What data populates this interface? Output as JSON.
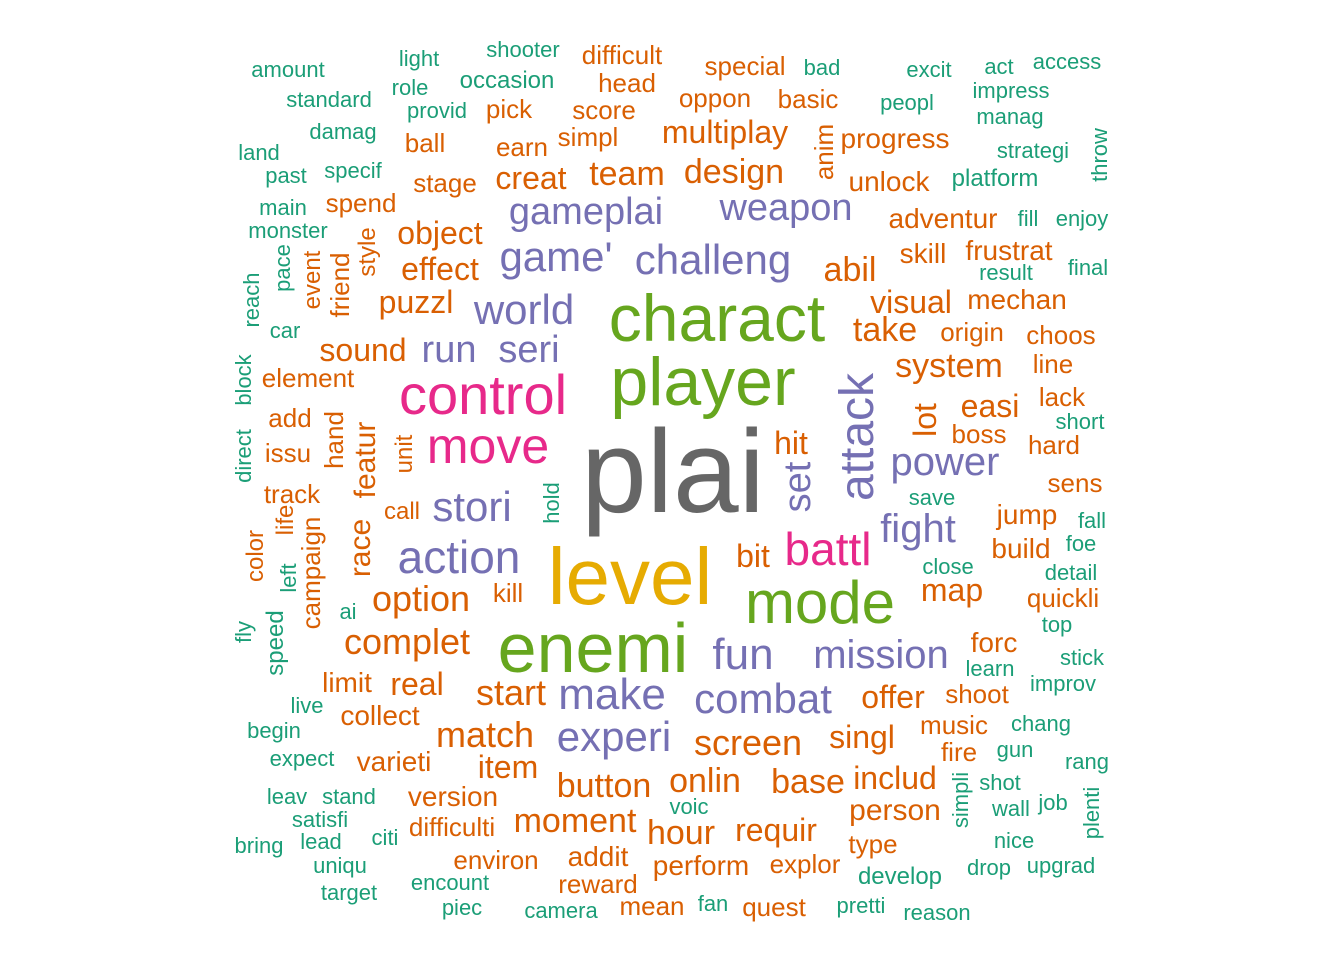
{
  "palette": {
    "green": "#1B9E77",
    "orange": "#D95F02",
    "purple": "#7570B3",
    "pink": "#E7298A",
    "lime": "#66A61E",
    "gold": "#E6AB02",
    "gray": "#666666"
  },
  "words": [
    {
      "text": "plai",
      "color": "gray"
    },
    {
      "text": "level",
      "color": "gold"
    },
    {
      "text": "enemi",
      "color": "lime"
    },
    {
      "text": "player",
      "color": "lime"
    },
    {
      "text": "charact",
      "color": "lime"
    },
    {
      "text": "mode",
      "color": "lime"
    },
    {
      "text": "control",
      "color": "pink"
    },
    {
      "text": "battl",
      "color": "pink"
    },
    {
      "text": "move",
      "color": "pink"
    },
    {
      "text": "attack",
      "color": "purple"
    },
    {
      "text": "action",
      "color": "purple"
    },
    {
      "text": "make",
      "color": "purple"
    },
    {
      "text": "fun",
      "color": "purple"
    },
    {
      "text": "experi",
      "color": "purple"
    },
    {
      "text": "combat",
      "color": "purple"
    },
    {
      "text": "stori",
      "color": "purple"
    },
    {
      "text": "world",
      "color": "purple"
    },
    {
      "text": "challeng",
      "color": "purple"
    },
    {
      "text": "game'",
      "color": "purple"
    },
    {
      "text": "mission",
      "color": "purple"
    },
    {
      "text": "power",
      "color": "purple"
    },
    {
      "text": "fight",
      "color": "purple"
    },
    {
      "text": "gameplai",
      "color": "purple"
    },
    {
      "text": "weapon",
      "color": "purple"
    },
    {
      "text": "seri",
      "color": "purple"
    },
    {
      "text": "run",
      "color": "purple"
    },
    {
      "text": "set",
      "color": "purple"
    },
    {
      "text": "design",
      "color": "orange"
    },
    {
      "text": "team",
      "color": "orange"
    },
    {
      "text": "multiplay",
      "color": "orange"
    },
    {
      "text": "creat",
      "color": "orange"
    },
    {
      "text": "object",
      "color": "orange"
    },
    {
      "text": "effect",
      "color": "orange"
    },
    {
      "text": "puzzl",
      "color": "orange"
    },
    {
      "text": "sound",
      "color": "orange"
    },
    {
      "text": "featur",
      "color": "orange"
    },
    {
      "text": "race",
      "color": "orange"
    },
    {
      "text": "hand",
      "color": "orange"
    },
    {
      "text": "option",
      "color": "orange"
    },
    {
      "text": "complet",
      "color": "orange"
    },
    {
      "text": "match",
      "color": "orange"
    },
    {
      "text": "start",
      "color": "orange"
    },
    {
      "text": "screen",
      "color": "orange"
    },
    {
      "text": "button",
      "color": "orange"
    },
    {
      "text": "moment",
      "color": "orange"
    },
    {
      "text": "onlin",
      "color": "orange"
    },
    {
      "text": "hour",
      "color": "orange"
    },
    {
      "text": "base",
      "color": "orange"
    },
    {
      "text": "requir",
      "color": "orange"
    },
    {
      "text": "singl",
      "color": "orange"
    },
    {
      "text": "offer",
      "color": "orange"
    },
    {
      "text": "item",
      "color": "orange"
    },
    {
      "text": "real",
      "color": "orange"
    },
    {
      "text": "system",
      "color": "orange"
    },
    {
      "text": "abil",
      "color": "orange"
    },
    {
      "text": "take",
      "color": "orange"
    },
    {
      "text": "visual",
      "color": "orange"
    },
    {
      "text": "lot",
      "color": "orange"
    },
    {
      "text": "easi",
      "color": "orange"
    },
    {
      "text": "hit",
      "color": "orange"
    },
    {
      "text": "bit",
      "color": "orange"
    },
    {
      "text": "map",
      "color": "orange"
    },
    {
      "text": "anim",
      "color": "orange"
    },
    {
      "text": "includ",
      "color": "orange"
    },
    {
      "text": "person",
      "color": "orange"
    },
    {
      "text": "version",
      "color": "orange"
    },
    {
      "text": "varieti",
      "color": "orange"
    },
    {
      "text": "collect",
      "color": "orange"
    },
    {
      "text": "limit",
      "color": "orange"
    },
    {
      "text": "addit",
      "color": "orange"
    },
    {
      "text": "perform",
      "color": "orange"
    },
    {
      "text": "explor",
      "color": "orange"
    },
    {
      "text": "difficulti",
      "color": "orange"
    },
    {
      "text": "environ",
      "color": "orange"
    },
    {
      "text": "reward",
      "color": "orange"
    },
    {
      "text": "mean",
      "color": "orange"
    },
    {
      "text": "quest",
      "color": "orange"
    },
    {
      "text": "kill",
      "color": "orange"
    },
    {
      "text": "music",
      "color": "orange"
    },
    {
      "text": "fire",
      "color": "orange"
    },
    {
      "text": "shoot",
      "color": "orange"
    },
    {
      "text": "forc",
      "color": "orange"
    },
    {
      "text": "build",
      "color": "orange"
    },
    {
      "text": "jump",
      "color": "orange"
    },
    {
      "text": "boss",
      "color": "orange"
    },
    {
      "text": "sens",
      "color": "orange"
    },
    {
      "text": "quickli",
      "color": "orange"
    },
    {
      "text": "mechan",
      "color": "orange"
    },
    {
      "text": "origin",
      "color": "orange"
    },
    {
      "text": "choos",
      "color": "orange"
    },
    {
      "text": "line",
      "color": "orange"
    },
    {
      "text": "lack",
      "color": "orange"
    },
    {
      "text": "hard",
      "color": "orange"
    },
    {
      "text": "skill",
      "color": "orange"
    },
    {
      "text": "frustrat",
      "color": "orange"
    },
    {
      "text": "adventur",
      "color": "orange"
    },
    {
      "text": "unlock",
      "color": "orange"
    },
    {
      "text": "progress",
      "color": "orange"
    },
    {
      "text": "basic",
      "color": "orange"
    },
    {
      "text": "oppon",
      "color": "orange"
    },
    {
      "text": "special",
      "color": "orange"
    },
    {
      "text": "difficult",
      "color": "orange"
    },
    {
      "text": "head",
      "color": "orange"
    },
    {
      "text": "score",
      "color": "orange"
    },
    {
      "text": "pick",
      "color": "orange"
    },
    {
      "text": "earn",
      "color": "orange"
    },
    {
      "text": "simpl",
      "color": "orange"
    },
    {
      "text": "ball",
      "color": "orange"
    },
    {
      "text": "stage",
      "color": "orange"
    },
    {
      "text": "spend",
      "color": "orange"
    },
    {
      "text": "style",
      "color": "orange"
    },
    {
      "text": "friend",
      "color": "orange"
    },
    {
      "text": "event",
      "color": "orange"
    },
    {
      "text": "element",
      "color": "orange"
    },
    {
      "text": "add",
      "color": "orange"
    },
    {
      "text": "issu",
      "color": "orange"
    },
    {
      "text": "unit",
      "color": "orange"
    },
    {
      "text": "call",
      "color": "orange"
    },
    {
      "text": "track",
      "color": "orange"
    },
    {
      "text": "life",
      "color": "orange"
    },
    {
      "text": "campaign",
      "color": "orange"
    },
    {
      "text": "color",
      "color": "orange"
    },
    {
      "text": "type",
      "color": "orange"
    },
    {
      "text": "amount",
      "color": "green"
    },
    {
      "text": "light",
      "color": "green"
    },
    {
      "text": "shooter",
      "color": "green"
    },
    {
      "text": "role",
      "color": "green"
    },
    {
      "text": "occasion",
      "color": "green"
    },
    {
      "text": "standard",
      "color": "green"
    },
    {
      "text": "provid",
      "color": "green"
    },
    {
      "text": "damag",
      "color": "green"
    },
    {
      "text": "land",
      "color": "green"
    },
    {
      "text": "past",
      "color": "green"
    },
    {
      "text": "specif",
      "color": "green"
    },
    {
      "text": "main",
      "color": "green"
    },
    {
      "text": "monster",
      "color": "green"
    },
    {
      "text": "pace",
      "color": "green"
    },
    {
      "text": "reach",
      "color": "green"
    },
    {
      "text": "car",
      "color": "green"
    },
    {
      "text": "block",
      "color": "green"
    },
    {
      "text": "direct",
      "color": "green"
    },
    {
      "text": "hold",
      "color": "green"
    },
    {
      "text": "left",
      "color": "green"
    },
    {
      "text": "ai",
      "color": "green"
    },
    {
      "text": "fly",
      "color": "green"
    },
    {
      "text": "speed",
      "color": "green"
    },
    {
      "text": "live",
      "color": "green"
    },
    {
      "text": "begin",
      "color": "green"
    },
    {
      "text": "expect",
      "color": "green"
    },
    {
      "text": "leav",
      "color": "green"
    },
    {
      "text": "stand",
      "color": "green"
    },
    {
      "text": "satisfi",
      "color": "green"
    },
    {
      "text": "bring",
      "color": "green"
    },
    {
      "text": "lead",
      "color": "green"
    },
    {
      "text": "citi",
      "color": "green"
    },
    {
      "text": "uniqu",
      "color": "green"
    },
    {
      "text": "target",
      "color": "green"
    },
    {
      "text": "encount",
      "color": "green"
    },
    {
      "text": "piec",
      "color": "green"
    },
    {
      "text": "camera",
      "color": "green"
    },
    {
      "text": "fan",
      "color": "green"
    },
    {
      "text": "pretti",
      "color": "green"
    },
    {
      "text": "reason",
      "color": "green"
    },
    {
      "text": "develop",
      "color": "green"
    },
    {
      "text": "voic",
      "color": "green"
    },
    {
      "text": "simpli",
      "color": "green"
    },
    {
      "text": "shot",
      "color": "green"
    },
    {
      "text": "wall",
      "color": "green"
    },
    {
      "text": "job",
      "color": "green"
    },
    {
      "text": "nice",
      "color": "green"
    },
    {
      "text": "drop",
      "color": "green"
    },
    {
      "text": "upgrad",
      "color": "green"
    },
    {
      "text": "plenti",
      "color": "green"
    },
    {
      "text": "rang",
      "color": "green"
    },
    {
      "text": "gun",
      "color": "green"
    },
    {
      "text": "chang",
      "color": "green"
    },
    {
      "text": "improv",
      "color": "green"
    },
    {
      "text": "learn",
      "color": "green"
    },
    {
      "text": "stick",
      "color": "green"
    },
    {
      "text": "top",
      "color": "green"
    },
    {
      "text": "detail",
      "color": "green"
    },
    {
      "text": "foe",
      "color": "green"
    },
    {
      "text": "fall",
      "color": "green"
    },
    {
      "text": "close",
      "color": "green"
    },
    {
      "text": "save",
      "color": "green"
    },
    {
      "text": "short",
      "color": "green"
    },
    {
      "text": "result",
      "color": "green"
    },
    {
      "text": "final",
      "color": "green"
    },
    {
      "text": "fill",
      "color": "green"
    },
    {
      "text": "enjoy",
      "color": "green"
    },
    {
      "text": "platform",
      "color": "green"
    },
    {
      "text": "strategi",
      "color": "green"
    },
    {
      "text": "throw",
      "color": "green"
    },
    {
      "text": "manag",
      "color": "green"
    },
    {
      "text": "impress",
      "color": "green"
    },
    {
      "text": "peopl",
      "color": "green"
    },
    {
      "text": "excit",
      "color": "green"
    },
    {
      "text": "act",
      "color": "green"
    },
    {
      "text": "access",
      "color": "green"
    },
    {
      "text": "bad",
      "color": "green"
    }
  ]
}
